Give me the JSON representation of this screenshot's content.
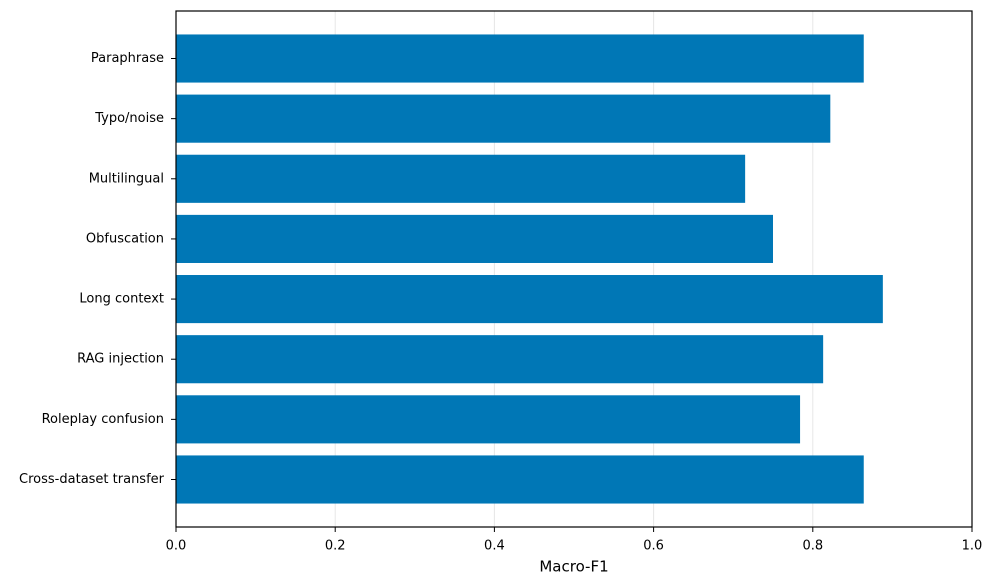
{
  "chart_data": {
    "type": "barh",
    "xlabel": "Macro-F1",
    "categories": [
      "Paraphrase",
      "Typo/noise",
      "Multilingual",
      "Obfuscation",
      "Long context",
      "RAG injection",
      "Roleplay confusion",
      "Cross-dataset transfer"
    ],
    "values": [
      0.864,
      0.822,
      0.715,
      0.75,
      0.888,
      0.813,
      0.784,
      0.864
    ],
    "color": "#0077b6",
    "xlim": [
      0,
      1
    ],
    "xticks": [
      {
        "value": 0,
        "label": "0.0"
      },
      0.2,
      0.4,
      0.6,
      0.8,
      {
        "value": 1,
        "label": "1.0"
      }
    ],
    "grid": true
  }
}
